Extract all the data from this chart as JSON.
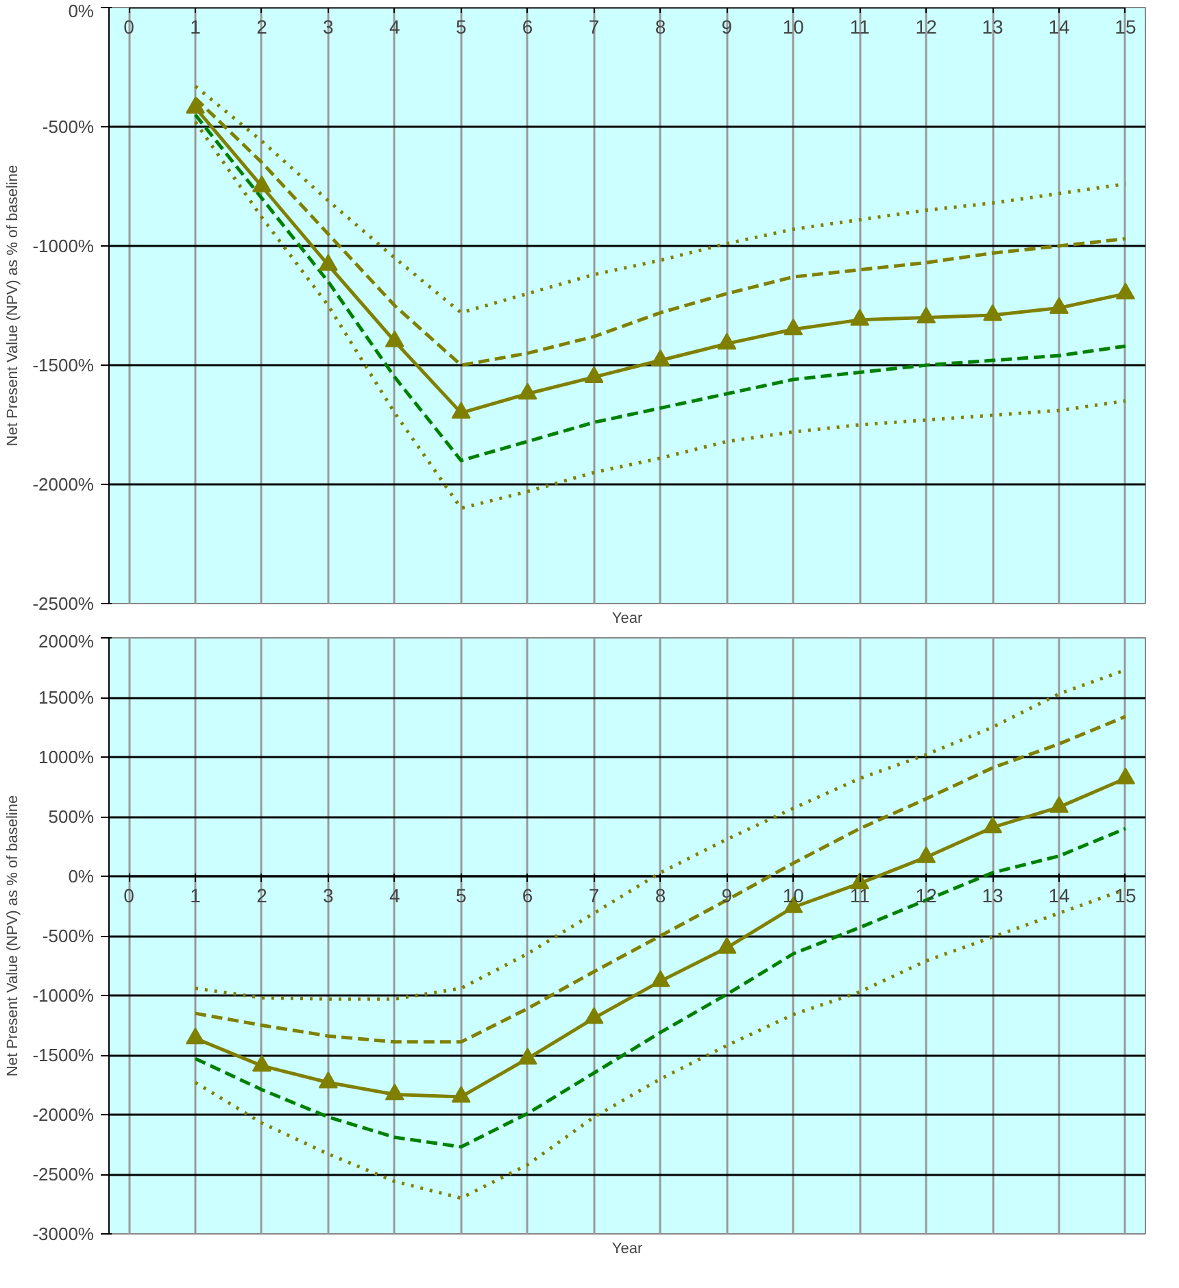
{
  "chart_data": [
    {
      "type": "line",
      "xlabel": "Year",
      "ylabel": "Net Present Value (NPV) as % of baseline",
      "x": [
        1,
        2,
        3,
        4,
        5,
        6,
        7,
        8,
        9,
        10,
        11,
        12,
        13,
        14,
        15
      ],
      "xlim": [
        0,
        15
      ],
      "xticks": [
        0,
        1,
        2,
        3,
        4,
        5,
        6,
        7,
        8,
        9,
        10,
        11,
        12,
        13,
        14,
        15
      ],
      "ylim": [
        -2500,
        0
      ],
      "yticks": [
        {
          "value": -2500,
          "label": "-2500%"
        },
        {
          "value": -2000,
          "label": "-2000%"
        },
        {
          "value": -1500,
          "label": "-1500%"
        },
        {
          "value": -1000,
          "label": "-1000%"
        },
        {
          "value": -500,
          "label": "-500%"
        },
        {
          "value": 0,
          "label": "0%"
        }
      ],
      "grid": true,
      "series": [
        {
          "color": "#808000",
          "marker": "none",
          "line_style": "dotted",
          "values": [
            -330,
            -560,
            -810,
            -1050,
            -1280,
            -1200,
            -1120,
            -1060,
            -990,
            -930,
            -890,
            -850,
            -820,
            -780,
            -740
          ]
        },
        {
          "color": "#808000",
          "marker": "none",
          "line_style": "dashed",
          "values": [
            -380,
            -650,
            -950,
            -1250,
            -1500,
            -1450,
            -1380,
            -1280,
            -1200,
            -1130,
            -1100,
            -1070,
            -1030,
            -1000,
            -970
          ]
        },
        {
          "color": "#008000",
          "marker": "none",
          "line_style": "dashed",
          "values": [
            -450,
            -800,
            -1150,
            -1550,
            -1900,
            -1820,
            -1740,
            -1680,
            -1620,
            -1560,
            -1530,
            -1500,
            -1480,
            -1460,
            -1420
          ]
        },
        {
          "color": "#808000",
          "marker": "none",
          "line_style": "dotted",
          "values": [
            -480,
            -880,
            -1250,
            -1700,
            -2100,
            -2030,
            -1950,
            -1890,
            -1820,
            -1780,
            -1750,
            -1730,
            -1710,
            -1690,
            -1650
          ]
        },
        {
          "color": "#808000",
          "marker": "triangle",
          "line_style": "solid",
          "values": [
            -420,
            -750,
            -1080,
            -1400,
            -1700,
            -1620,
            -1550,
            -1480,
            -1410,
            -1350,
            -1310,
            -1300,
            -1290,
            -1260,
            -1200
          ]
        }
      ]
    },
    {
      "type": "line",
      "xlabel": "Year",
      "ylabel": "Net Present Value (NPV) as % of baseline",
      "x": [
        1,
        2,
        3,
        4,
        5,
        6,
        7,
        8,
        9,
        10,
        11,
        12,
        13,
        14,
        15
      ],
      "xlim": [
        0,
        15
      ],
      "xticks": [
        0,
        1,
        2,
        3,
        4,
        5,
        6,
        7,
        8,
        9,
        10,
        11,
        12,
        13,
        14,
        15
      ],
      "ylim": [
        -3000,
        2000
      ],
      "yticks": [
        {
          "value": -3000,
          "label": "-3000%"
        },
        {
          "value": -2500,
          "label": "-2500%"
        },
        {
          "value": -2000,
          "label": "-2000%"
        },
        {
          "value": -1500,
          "label": "-1500%"
        },
        {
          "value": -1000,
          "label": "-1000%"
        },
        {
          "value": -500,
          "label": "-500%"
        },
        {
          "value": 0,
          "label": "0%"
        },
        {
          "value": 500,
          "label": "500%"
        },
        {
          "value": 1000,
          "label": "1000%"
        },
        {
          "value": 1500,
          "label": "1500%"
        },
        {
          "value": 2000,
          "label": "2000%"
        }
      ],
      "grid": true,
      "series": [
        {
          "color": "#808000",
          "marker": "none",
          "line_style": "dotted",
          "values": [
            -940,
            -1020,
            -1030,
            -1030,
            -940,
            -650,
            -310,
            30,
            310,
            570,
            820,
            1020,
            1250,
            1530,
            1730
          ]
        },
        {
          "color": "#808000",
          "marker": "none",
          "line_style": "dashed",
          "values": [
            -1150,
            -1250,
            -1340,
            -1390,
            -1390,
            -1110,
            -800,
            -500,
            -200,
            110,
            400,
            650,
            910,
            1110,
            1340
          ]
        },
        {
          "color": "#008000",
          "marker": "none",
          "line_style": "dashed",
          "values": [
            -1530,
            -1790,
            -2020,
            -2190,
            -2270,
            -1990,
            -1650,
            -1310,
            -990,
            -650,
            -430,
            -200,
            30,
            170,
            400
          ]
        },
        {
          "color": "#808000",
          "marker": "none",
          "line_style": "dotted",
          "values": [
            -1730,
            -2070,
            -2330,
            -2560,
            -2700,
            -2420,
            -2020,
            -1700,
            -1420,
            -1160,
            -970,
            -710,
            -510,
            -310,
            -110
          ]
        },
        {
          "color": "#808000",
          "marker": "triangle",
          "line_style": "solid",
          "values": [
            -1360,
            -1590,
            -1730,
            -1830,
            -1850,
            -1530,
            -1190,
            -880,
            -600,
            -260,
            -60,
            160,
            410,
            580,
            820
          ]
        }
      ]
    }
  ]
}
